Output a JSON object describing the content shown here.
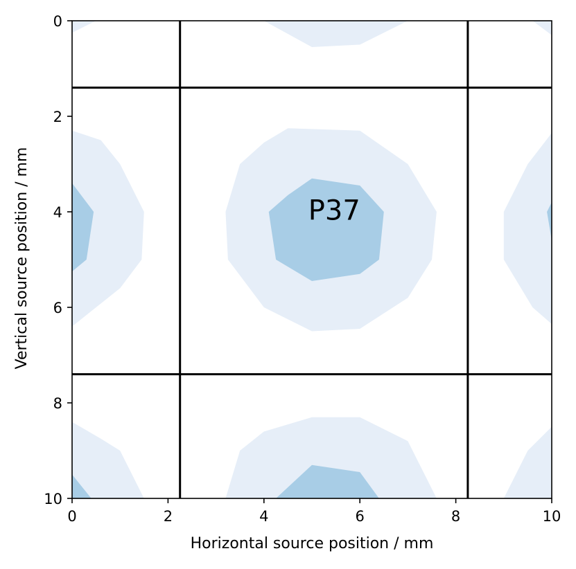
{
  "chart_data": {
    "type": "contour",
    "xlabel": "Horizontal source position / mm",
    "ylabel": "Vertical source position / mm",
    "xlim": [
      0,
      10
    ],
    "ylim": [
      10,
      0
    ],
    "y_axis_inverted": true,
    "x_ticks": [
      0,
      2,
      4,
      6,
      8,
      10
    ],
    "y_ticks": [
      0,
      2,
      4,
      6,
      8,
      10
    ],
    "grid": false,
    "pixel_label": "P37",
    "pixel_boundaries": {
      "vertical_lines_x": [
        2.25,
        8.25
      ],
      "horizontal_lines_y": [
        1.4,
        7.4
      ]
    },
    "contour_levels": [
      {
        "level": "low",
        "color": "#e6eef8"
      },
      {
        "level": "high",
        "color": "#a8cde6"
      }
    ],
    "contour_regions": [
      {
        "level": "low",
        "points": [
          [
            4.5,
            2.25
          ],
          [
            6,
            2.3
          ],
          [
            7,
            3
          ],
          [
            7.6,
            4
          ],
          [
            7.5,
            5
          ],
          [
            7,
            5.8
          ],
          [
            6,
            6.45
          ],
          [
            5,
            6.5
          ],
          [
            4,
            6
          ],
          [
            3.25,
            5
          ],
          [
            3.2,
            4
          ],
          [
            3.5,
            3
          ],
          [
            4,
            2.55
          ]
        ]
      },
      {
        "level": "high",
        "points": [
          [
            5,
            3.3
          ],
          [
            6,
            3.45
          ],
          [
            6.5,
            4
          ],
          [
            6.4,
            5
          ],
          [
            6,
            5.3
          ],
          [
            5,
            5.45
          ],
          [
            4.25,
            5
          ],
          [
            4.1,
            4
          ],
          [
            4.5,
            3.65
          ]
        ]
      },
      {
        "level": "low",
        "points": [
          [
            0,
            2.3
          ],
          [
            0.6,
            2.5
          ],
          [
            1,
            3
          ],
          [
            1.5,
            4
          ],
          [
            1.45,
            5
          ],
          [
            1,
            5.6
          ],
          [
            0.5,
            6
          ],
          [
            0,
            6.4
          ]
        ]
      },
      {
        "level": "high",
        "points": [
          [
            0,
            3.4
          ],
          [
            0.45,
            4
          ],
          [
            0.3,
            5
          ],
          [
            0,
            5.25
          ]
        ]
      },
      {
        "level": "low",
        "points": [
          [
            10,
            2.35
          ],
          [
            9.5,
            3
          ],
          [
            9,
            4
          ],
          [
            9,
            5
          ],
          [
            9.6,
            6
          ],
          [
            10,
            6.35
          ]
        ]
      },
      {
        "level": "high",
        "points": [
          [
            10,
            3.8
          ],
          [
            9.9,
            4
          ],
          [
            10,
            4.6
          ]
        ]
      },
      {
        "level": "low",
        "points": [
          [
            0,
            8.4
          ],
          [
            0.6,
            8.75
          ],
          [
            1,
            9
          ],
          [
            1.5,
            10
          ],
          [
            0,
            10
          ]
        ]
      },
      {
        "level": "high",
        "points": [
          [
            0,
            9.5
          ],
          [
            0.4,
            10
          ],
          [
            0,
            10
          ]
        ]
      },
      {
        "level": "low",
        "points": [
          [
            3.2,
            10
          ],
          [
            3.5,
            9
          ],
          [
            4,
            8.6
          ],
          [
            5,
            8.3
          ],
          [
            6,
            8.3
          ],
          [
            7,
            8.8
          ],
          [
            7.6,
            10
          ]
        ]
      },
      {
        "level": "high",
        "points": [
          [
            4.25,
            10
          ],
          [
            5,
            9.3
          ],
          [
            6,
            9.45
          ],
          [
            6.4,
            10
          ]
        ]
      },
      {
        "level": "low",
        "points": [
          [
            10,
            8.5
          ],
          [
            9.5,
            9
          ],
          [
            9,
            10
          ],
          [
            10,
            10
          ]
        ]
      },
      {
        "level": "low",
        "points": [
          [
            4,
            0
          ],
          [
            7,
            0
          ],
          [
            6,
            0.5
          ],
          [
            5,
            0.55
          ]
        ]
      },
      {
        "level": "low",
        "points": [
          [
            0,
            0
          ],
          [
            0.5,
            0
          ],
          [
            0,
            0.25
          ]
        ]
      },
      {
        "level": "low",
        "points": [
          [
            9.6,
            0
          ],
          [
            10,
            0
          ],
          [
            10,
            0.3
          ]
        ]
      }
    ]
  }
}
